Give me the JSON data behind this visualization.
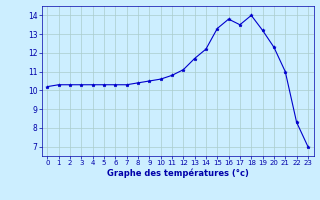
{
  "hours": [
    0,
    1,
    2,
    3,
    4,
    5,
    6,
    7,
    8,
    9,
    10,
    11,
    12,
    13,
    14,
    15,
    16,
    17,
    18,
    19,
    20,
    21,
    22,
    23
  ],
  "temperatures": [
    10.2,
    10.3,
    10.3,
    10.3,
    10.3,
    10.3,
    10.3,
    10.3,
    10.4,
    10.5,
    10.6,
    10.8,
    11.1,
    11.7,
    12.2,
    13.3,
    13.8,
    13.5,
    14.0,
    13.2,
    12.3,
    11.0,
    8.3,
    7.0
  ],
  "line_color": "#0000cc",
  "marker": "*",
  "marker_size": 2.5,
  "bg_color": "#cceeff",
  "grid_color": "#aacccc",
  "xlabel": "Graphe des températures (°c)",
  "xlabel_color": "#0000aa",
  "tick_color": "#0000aa",
  "ylim": [
    6.5,
    14.5
  ],
  "yticks": [
    7,
    8,
    9,
    10,
    11,
    12,
    13,
    14
  ],
  "xlim": [
    -0.5,
    23.5
  ],
  "xticks": [
    0,
    1,
    2,
    3,
    4,
    5,
    6,
    7,
    8,
    9,
    10,
    11,
    12,
    13,
    14,
    15,
    16,
    17,
    18,
    19,
    20,
    21,
    22,
    23
  ]
}
